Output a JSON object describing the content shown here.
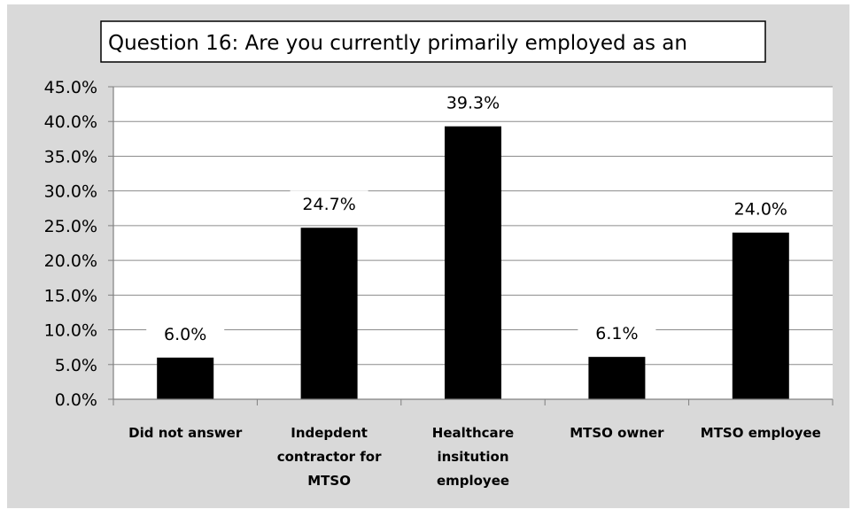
{
  "chart_data": {
    "type": "bar",
    "title": "Question 16: Are you currently primarily employed as an",
    "categories": [
      [
        "Did not answer"
      ],
      [
        "Indepdent",
        "contractor for",
        "MTSO"
      ],
      [
        "Healthcare",
        "insitution",
        "employee"
      ],
      [
        "MTSO owner"
      ],
      [
        "MTSO employee"
      ]
    ],
    "values": [
      6.0,
      24.7,
      39.3,
      6.1,
      24.0
    ],
    "data_labels": [
      "6.0%",
      "24.7%",
      "39.3%",
      "6.1%",
      "24.0%"
    ],
    "yticks": [
      "0.0%",
      "5.0%",
      "10.0%",
      "15.0%",
      "20.0%",
      "25.0%",
      "30.0%",
      "35.0%",
      "40.0%",
      "45.0%"
    ],
    "ylim": [
      0,
      45
    ],
    "grid": true,
    "legend": "none",
    "bar_color": "#000000",
    "background_color": "#d9d9d9",
    "plot_background": "#ffffff"
  }
}
